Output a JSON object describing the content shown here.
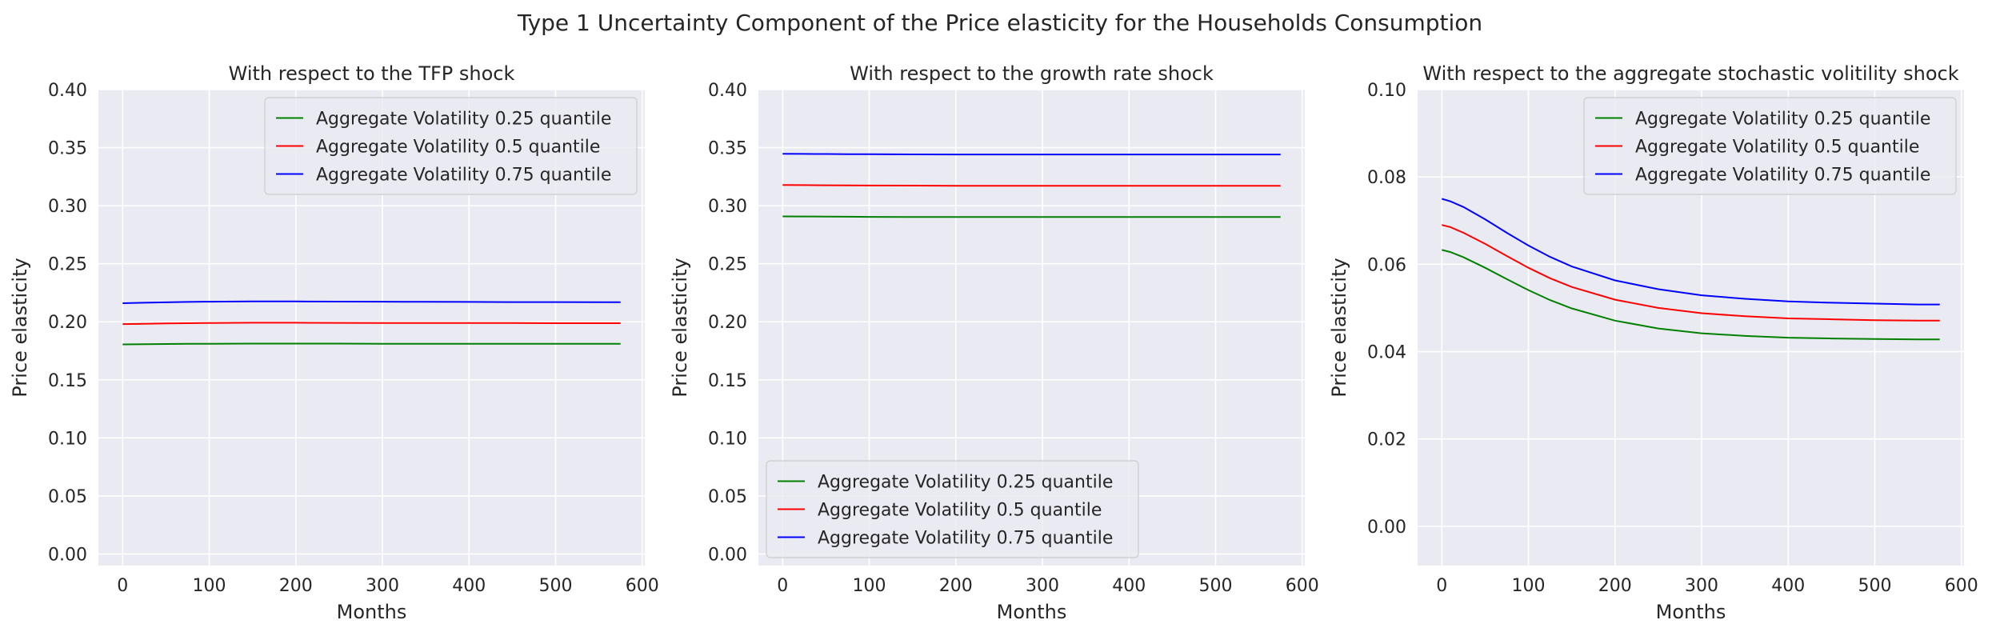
{
  "figure_title": "Type 1 Uncertainty Component of the Price elasticity for the Households Consumption",
  "chart_data": [
    {
      "type": "line",
      "title": "With respect to the TFP shock",
      "xlabel": "Months",
      "ylabel": "Price elasticity",
      "xlim": [
        -28,
        603
      ],
      "ylim": [
        -0.01,
        0.4
      ],
      "xticks": [
        0,
        100,
        200,
        300,
        400,
        500,
        600
      ],
      "yticks": [
        0.0,
        0.05,
        0.1,
        0.15,
        0.2,
        0.25,
        0.3,
        0.35,
        0.4
      ],
      "ytick_decimals": 2,
      "grid": true,
      "legend_position": "upper right",
      "x": [
        0,
        25,
        50,
        75,
        100,
        150,
        200,
        250,
        300,
        350,
        400,
        450,
        500,
        550,
        575
      ],
      "series": [
        {
          "name": "Aggregate Volatility 0.25 quantile",
          "color": "#008000",
          "values": [
            0.1805,
            0.1807,
            0.1809,
            0.181,
            0.1811,
            0.1812,
            0.1812,
            0.1812,
            0.1811,
            0.1811,
            0.1811,
            0.1811,
            0.1811,
            0.1811,
            0.1811
          ]
        },
        {
          "name": "Aggregate Volatility 0.5 quantile",
          "color": "#ff0000",
          "values": [
            0.198,
            0.1983,
            0.1986,
            0.1988,
            0.199,
            0.1992,
            0.1992,
            0.1991,
            0.199,
            0.199,
            0.1989,
            0.1989,
            0.1988,
            0.1988,
            0.1988
          ]
        },
        {
          "name": "Aggregate Volatility 0.75 quantile",
          "color": "#0000ff",
          "values": [
            0.216,
            0.2164,
            0.2168,
            0.2171,
            0.2173,
            0.2175,
            0.2175,
            0.2174,
            0.2173,
            0.2172,
            0.2171,
            0.217,
            0.217,
            0.2169,
            0.2169
          ]
        }
      ]
    },
    {
      "type": "line",
      "title": "With respect to the growth rate shock",
      "xlabel": "Months",
      "ylabel": "Price elasticity",
      "xlim": [
        -28,
        603
      ],
      "ylim": [
        -0.01,
        0.4
      ],
      "xticks": [
        0,
        100,
        200,
        300,
        400,
        500,
        600
      ],
      "yticks": [
        0.0,
        0.05,
        0.1,
        0.15,
        0.2,
        0.25,
        0.3,
        0.35,
        0.4
      ],
      "ytick_decimals": 2,
      "grid": true,
      "legend_position": "lower left",
      "x": [
        0,
        25,
        50,
        75,
        100,
        150,
        200,
        250,
        300,
        350,
        400,
        450,
        500,
        550,
        575
      ],
      "series": [
        {
          "name": "Aggregate Volatility 0.25 quantile",
          "color": "#008000",
          "values": [
            0.2908,
            0.2907,
            0.2906,
            0.2905,
            0.2904,
            0.2903,
            0.2902,
            0.2902,
            0.2902,
            0.2902,
            0.2902,
            0.2902,
            0.2902,
            0.2902,
            0.2902
          ]
        },
        {
          "name": "Aggregate Volatility 0.5 quantile",
          "color": "#ff0000",
          "values": [
            0.3178,
            0.3177,
            0.3176,
            0.3175,
            0.3174,
            0.3173,
            0.3172,
            0.3172,
            0.3172,
            0.3172,
            0.3172,
            0.3172,
            0.3172,
            0.3172,
            0.3172
          ]
        },
        {
          "name": "Aggregate Volatility 0.75 quantile",
          "color": "#0000ff",
          "values": [
            0.3447,
            0.3446,
            0.3445,
            0.3444,
            0.3443,
            0.3442,
            0.3441,
            0.3441,
            0.3441,
            0.3441,
            0.3441,
            0.3441,
            0.3441,
            0.3441,
            0.3441
          ]
        }
      ]
    },
    {
      "type": "line",
      "title": "With respect to the aggregate stochastic volitility shock",
      "xlabel": "Months",
      "ylabel": "Price elasticity",
      "xlim": [
        -28,
        603
      ],
      "ylim": [
        -0.009,
        0.1
      ],
      "xticks": [
        0,
        100,
        200,
        300,
        400,
        500,
        600
      ],
      "yticks": [
        0.0,
        0.02,
        0.04,
        0.06,
        0.08,
        0.1
      ],
      "ytick_decimals": 2,
      "grid": true,
      "legend_position": "upper right",
      "x": [
        0,
        10,
        25,
        50,
        75,
        100,
        125,
        150,
        200,
        250,
        300,
        350,
        400,
        450,
        500,
        550,
        575
      ],
      "series": [
        {
          "name": "Aggregate Volatility 0.25 quantile",
          "color": "#008000",
          "values": [
            0.0633,
            0.0628,
            0.0616,
            0.0592,
            0.0566,
            0.0541,
            0.0518,
            0.0499,
            0.0471,
            0.0453,
            0.0442,
            0.0436,
            0.0432,
            0.043,
            0.0429,
            0.0428,
            0.0428
          ]
        },
        {
          "name": "Aggregate Volatility 0.5 quantile",
          "color": "#ff0000",
          "values": [
            0.069,
            0.0685,
            0.0672,
            0.0647,
            0.0619,
            0.0592,
            0.0568,
            0.0548,
            0.0519,
            0.05,
            0.0488,
            0.0481,
            0.0476,
            0.0474,
            0.0472,
            0.0471,
            0.0471
          ]
        },
        {
          "name": "Aggregate Volatility 0.75 quantile",
          "color": "#0000ff",
          "values": [
            0.075,
            0.0744,
            0.0731,
            0.0703,
            0.0672,
            0.0643,
            0.0617,
            0.0595,
            0.0563,
            0.0543,
            0.0529,
            0.0521,
            0.0515,
            0.0512,
            0.051,
            0.0508,
            0.0508
          ]
        }
      ]
    }
  ]
}
